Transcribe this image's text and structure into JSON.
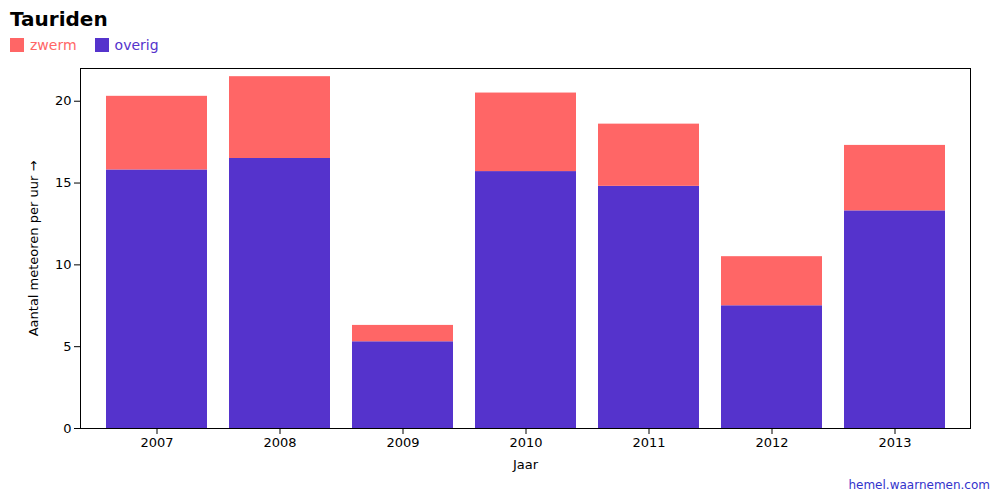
{
  "chart_data": {
    "type": "bar",
    "stacked": true,
    "title": "Tauriden",
    "xlabel": "Jaar",
    "ylabel": "Aantal meteoren per uur",
    "categories": [
      "2007",
      "2008",
      "2009",
      "2010",
      "2011",
      "2012",
      "2013"
    ],
    "series": [
      {
        "name": "overig",
        "color": "#5533CC",
        "values": [
          15.8,
          16.5,
          5.3,
          15.7,
          14.8,
          7.5,
          13.3
        ]
      },
      {
        "name": "zwerm",
        "color": "#FF6666",
        "values": [
          4.5,
          5.0,
          1.0,
          4.8,
          3.8,
          3.0,
          4.0
        ]
      }
    ],
    "ylim": [
      0,
      22
    ],
    "yticks": [
      0,
      5,
      10,
      15,
      20
    ],
    "grid": false,
    "legend": "upper left",
    "annotations": [
      {
        "text": "hemel.waarnemen.com",
        "color": "#3333CC"
      }
    ]
  }
}
